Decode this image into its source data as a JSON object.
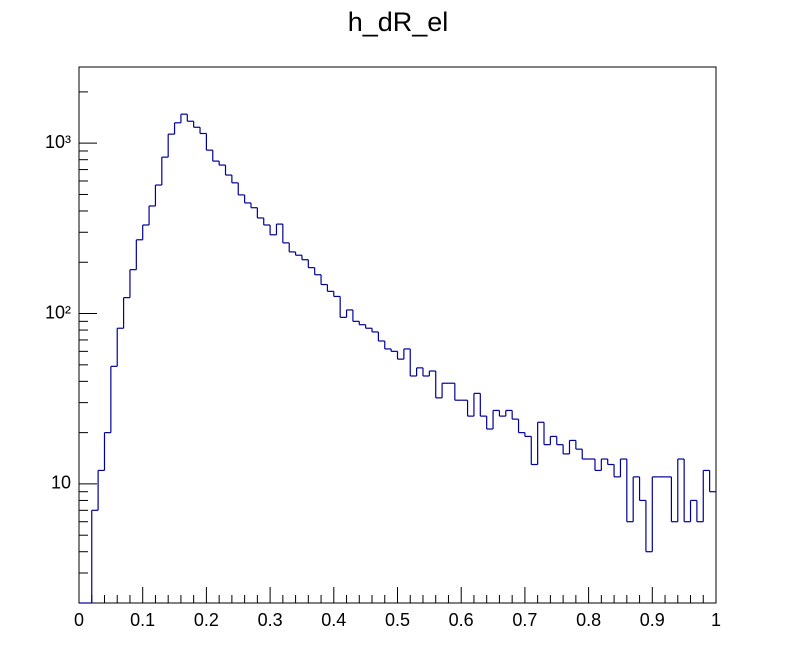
{
  "chart_data": {
    "type": "histogram",
    "title": "h_dR_el",
    "bins": [
      0,
      0.01,
      0.02,
      0.03,
      0.04,
      0.05,
      0.06,
      0.07,
      0.08,
      0.09,
      0.1,
      0.11,
      0.12,
      0.13,
      0.14,
      0.15,
      0.16,
      0.17,
      0.18,
      0.19,
      0.2,
      0.21,
      0.22,
      0.23,
      0.24,
      0.25,
      0.26,
      0.27,
      0.28,
      0.29,
      0.3,
      0.31,
      0.32,
      0.33,
      0.34,
      0.35,
      0.36,
      0.37,
      0.38,
      0.39,
      0.4,
      0.41,
      0.42,
      0.43,
      0.44,
      0.45,
      0.46,
      0.47,
      0.48,
      0.49,
      0.5,
      0.51,
      0.52,
      0.53,
      0.54,
      0.55,
      0.56,
      0.57,
      0.58,
      0.59,
      0.6,
      0.61,
      0.62,
      0.63,
      0.64,
      0.65,
      0.66,
      0.67,
      0.68,
      0.69,
      0.7,
      0.71,
      0.72,
      0.73,
      0.74,
      0.75,
      0.76,
      0.77,
      0.78,
      0.79,
      0.8,
      0.81,
      0.82,
      0.83,
      0.84,
      0.85,
      0.86,
      0.87,
      0.88,
      0.89,
      0.9,
      0.91,
      0.92,
      0.93,
      0.94,
      0.95,
      0.96,
      0.97,
      0.98,
      0.99,
      1
    ],
    "values": [
      0,
      0,
      7,
      12,
      20,
      49,
      82,
      124,
      181,
      271,
      331,
      428,
      568,
      828,
      1130,
      1317,
      1480,
      1345,
      1240,
      1140,
      910,
      785,
      744,
      650,
      585,
      497,
      446,
      418,
      364,
      331,
      290,
      335,
      260,
      230,
      220,
      207,
      186,
      169,
      148,
      135,
      126,
      95,
      105,
      90,
      86,
      82,
      78,
      69,
      62,
      60,
      54,
      62,
      43,
      48,
      43,
      46,
      32,
      39,
      39,
      31,
      31,
      25,
      34,
      25,
      21,
      27,
      25,
      27,
      24,
      20,
      19,
      13,
      23,
      17,
      19,
      17,
      15,
      18,
      16,
      14,
      14,
      12,
      14,
      13,
      11,
      14,
      6,
      11,
      8,
      4,
      11,
      11,
      11,
      6,
      14,
      6,
      8,
      6,
      12,
      9
    ],
    "color": "#000099",
    "xlim": [
      0,
      1
    ],
    "xticks": [
      0,
      0.1,
      0.2,
      0.3,
      0.4,
      0.5,
      0.6,
      0.7,
      0.8,
      0.9,
      1
    ],
    "ylim": [
      2,
      2800
    ],
    "ylog": true,
    "yticks": [
      10,
      {
        "value": 100,
        "label": "10²"
      },
      {
        "value": 1000,
        "label": "10³"
      }
    ]
  }
}
